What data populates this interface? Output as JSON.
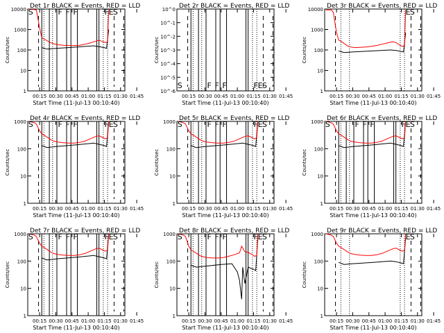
{
  "figure": {
    "ylabel": "Counts/sec",
    "xlabel": "Start Time (11-Jul-13 00:10:40)",
    "x_ticks": [
      "00:15",
      "00:30",
      "00:45",
      "01:00",
      "01:15",
      "01:30",
      "01:45"
    ],
    "y_ticks_log": [
      "1",
      "10",
      "100",
      "1000",
      "10000"
    ],
    "y_ticks_panel2": [
      "10^0",
      "10^-1",
      "10^-2",
      "10^-3",
      "10^-4",
      "10^-5",
      "10^-6"
    ],
    "colors": {
      "events": "#000000",
      "lld": "#ff0000"
    }
  },
  "chart_data": [
    {
      "type": "line",
      "title": "Det 1r BLACK = Events, RED = LLD",
      "x_unit": "minutes since 00:10:40",
      "y_scale": "log",
      "ylim": [
        1,
        10000
      ],
      "markers": [
        "S",
        "F",
        "F",
        "F",
        "F",
        "E",
        "S"
      ],
      "series": [
        {
          "name": "Events",
          "x": [
            17,
            22,
            30,
            50,
            65,
            70,
            75,
            77,
            79
          ],
          "values": [
            130,
            110,
            120,
            140,
            160,
            145,
            130,
            120,
            1000
          ]
        },
        {
          "name": "LLD",
          "x": [
            5,
            10,
            12,
            15,
            17,
            20,
            25,
            28,
            32,
            37,
            42,
            47,
            52,
            57,
            62,
            67,
            70,
            73,
            76,
            78,
            79
          ],
          "values": [
            10000,
            9500,
            9000,
            1200,
            400,
            320,
            230,
            200,
            180,
            170,
            165,
            165,
            170,
            190,
            220,
            270,
            300,
            260,
            230,
            250,
            9000
          ]
        }
      ]
    },
    {
      "type": "line",
      "title": "Det 2r BLACK = Events, RED = LLD",
      "x_unit": "minutes since 00:10:40",
      "y_scale": "log",
      "ylim": [
        1e-06,
        1
      ],
      "markers": [
        "S",
        "F",
        "F",
        "F",
        "F",
        "E",
        "S"
      ],
      "series": []
    },
    {
      "type": "line",
      "title": "Det 3r BLACK = Events, RED = LLD",
      "x_unit": "minutes since 00:10:40",
      "y_scale": "log",
      "ylim": [
        1,
        10000
      ],
      "markers": [
        "E",
        "S"
      ],
      "series": [
        {
          "name": "Events",
          "x": [
            17,
            22,
            30,
            50,
            65,
            70,
            75,
            77,
            79
          ],
          "values": [
            90,
            75,
            80,
            90,
            100,
            95,
            85,
            80,
            700
          ]
        },
        {
          "name": "LLD",
          "x": [
            5,
            10,
            12,
            15,
            17,
            20,
            25,
            28,
            32,
            37,
            42,
            47,
            52,
            57,
            62,
            67,
            70,
            73,
            76,
            78,
            79
          ],
          "values": [
            9000,
            9000,
            7000,
            700,
            300,
            250,
            160,
            140,
            130,
            135,
            140,
            150,
            165,
            190,
            220,
            250,
            230,
            180,
            150,
            160,
            9000
          ]
        }
      ]
    },
    {
      "type": "line",
      "title": "Det 4r BLACK = Events, RED = LLD",
      "x_unit": "minutes since 00:10:40",
      "y_scale": "log",
      "ylim": [
        1,
        1000
      ],
      "markers": [
        "S",
        "F",
        "F",
        "F",
        "F",
        "E",
        "S"
      ],
      "series": [
        {
          "name": "Events",
          "x": [
            17,
            22,
            30,
            50,
            65,
            70,
            75,
            77,
            79
          ],
          "values": [
            130,
            110,
            120,
            140,
            160,
            145,
            130,
            120,
            1000
          ]
        },
        {
          "name": "LLD",
          "x": [
            5,
            10,
            12,
            15,
            17,
            20,
            25,
            28,
            32,
            37,
            42,
            47,
            52,
            57,
            62,
            67,
            70,
            73,
            76,
            78,
            79
          ],
          "values": [
            1000,
            900,
            800,
            450,
            350,
            300,
            220,
            190,
            175,
            165,
            160,
            160,
            170,
            190,
            230,
            280,
            300,
            260,
            230,
            250,
            1000
          ]
        }
      ]
    },
    {
      "type": "line",
      "title": "Det 5r BLACK = Events, RED = LLD",
      "x_unit": "minutes since 00:10:40",
      "y_scale": "log",
      "ylim": [
        1,
        1000
      ],
      "markers": [
        "S",
        "F",
        "F",
        "F",
        "F",
        "E",
        "S"
      ],
      "series": [
        {
          "name": "Events",
          "x": [
            17,
            22,
            30,
            50,
            65,
            70,
            75,
            77,
            79
          ],
          "values": [
            130,
            110,
            120,
            140,
            160,
            145,
            130,
            120,
            1000
          ]
        },
        {
          "name": "LLD",
          "x": [
            5,
            10,
            12,
            15,
            17,
            20,
            25,
            28,
            32,
            37,
            42,
            47,
            52,
            57,
            62,
            67,
            70,
            73,
            76,
            78,
            79
          ],
          "values": [
            1000,
            900,
            800,
            450,
            350,
            300,
            220,
            190,
            175,
            165,
            160,
            160,
            170,
            190,
            230,
            280,
            300,
            260,
            230,
            250,
            1000
          ]
        }
      ]
    },
    {
      "type": "line",
      "title": "Det 6r BLACK = Events, RED = LLD",
      "x_unit": "minutes since 00:10:40",
      "y_scale": "log",
      "ylim": [
        1,
        1000
      ],
      "markers": [
        "S",
        "F",
        "F",
        "F",
        "F",
        "E",
        "S"
      ],
      "series": [
        {
          "name": "Events",
          "x": [
            17,
            22,
            30,
            50,
            65,
            70,
            75,
            77,
            79
          ],
          "values": [
            130,
            110,
            120,
            140,
            160,
            145,
            130,
            120,
            1000
          ]
        },
        {
          "name": "LLD",
          "x": [
            5,
            10,
            12,
            15,
            17,
            20,
            25,
            28,
            32,
            37,
            42,
            47,
            52,
            57,
            62,
            67,
            70,
            73,
            76,
            78,
            79
          ],
          "values": [
            1000,
            900,
            800,
            450,
            350,
            300,
            220,
            190,
            175,
            165,
            160,
            160,
            170,
            190,
            230,
            280,
            300,
            260,
            230,
            250,
            1000
          ]
        }
      ]
    },
    {
      "type": "line",
      "title": "Det 7r BLACK = Events, RED = LLD",
      "x_unit": "minutes since 00:10:40",
      "y_scale": "log",
      "ylim": [
        1,
        1000
      ],
      "markers": [
        "S",
        "F",
        "F",
        "F",
        "F",
        "E",
        "S"
      ],
      "series": [
        {
          "name": "Events",
          "x": [
            17,
            22,
            30,
            50,
            65,
            70,
            75,
            77,
            79
          ],
          "values": [
            130,
            110,
            120,
            140,
            160,
            145,
            130,
            120,
            1000
          ]
        },
        {
          "name": "LLD",
          "x": [
            5,
            10,
            12,
            15,
            17,
            20,
            25,
            28,
            32,
            37,
            42,
            47,
            52,
            57,
            62,
            67,
            70,
            73,
            76,
            78,
            79
          ],
          "values": [
            1000,
            900,
            800,
            450,
            350,
            300,
            220,
            190,
            175,
            165,
            160,
            160,
            170,
            190,
            230,
            280,
            300,
            260,
            230,
            250,
            1000
          ]
        }
      ]
    },
    {
      "type": "line",
      "title": "Det 8r BLACK = Events, RED = LLD",
      "x_unit": "minutes since 00:10:40",
      "y_scale": "log",
      "ylim": [
        1,
        1000
      ],
      "markers": [
        "S",
        "F",
        "F",
        "F",
        "F",
        "E",
        "S"
      ],
      "series": [
        {
          "name": "Events",
          "x": [
            17,
            22,
            30,
            45,
            55,
            60,
            62,
            64,
            65,
            67,
            70,
            75,
            77,
            79
          ],
          "values": [
            70,
            60,
            65,
            75,
            80,
            40,
            20,
            4,
            60,
            15,
            60,
            50,
            45,
            700
          ]
        },
        {
          "name": "LLD",
          "x": [
            5,
            10,
            12,
            15,
            17,
            20,
            25,
            28,
            32,
            37,
            42,
            47,
            52,
            57,
            62,
            64,
            67,
            70,
            73,
            76,
            78,
            79
          ],
          "values": [
            1000,
            900,
            800,
            350,
            260,
            220,
            160,
            145,
            135,
            130,
            130,
            135,
            150,
            170,
            200,
            350,
            220,
            210,
            180,
            150,
            160,
            1000
          ]
        }
      ]
    },
    {
      "type": "line",
      "title": "Det 9r BLACK = Events, RED = LLD",
      "x_unit": "minutes since 00:10:40",
      "y_scale": "log",
      "ylim": [
        1,
        1000
      ],
      "markers": [
        "E",
        "S"
      ],
      "series": [
        {
          "name": "Events",
          "x": [
            17,
            22,
            30,
            50,
            65,
            70,
            75,
            77,
            79
          ],
          "values": [
            90,
            75,
            80,
            90,
            100,
            95,
            85,
            80,
            700
          ]
        },
        {
          "name": "LLD",
          "x": [
            5,
            10,
            12,
            15,
            17,
            20,
            25,
            28,
            32,
            37,
            42,
            47,
            52,
            57,
            62,
            67,
            70,
            73,
            76,
            78,
            79
          ],
          "values": [
            1000,
            900,
            800,
            450,
            350,
            300,
            220,
            190,
            175,
            165,
            160,
            160,
            170,
            190,
            230,
            280,
            300,
            260,
            230,
            250,
            1000
          ]
        }
      ]
    }
  ]
}
